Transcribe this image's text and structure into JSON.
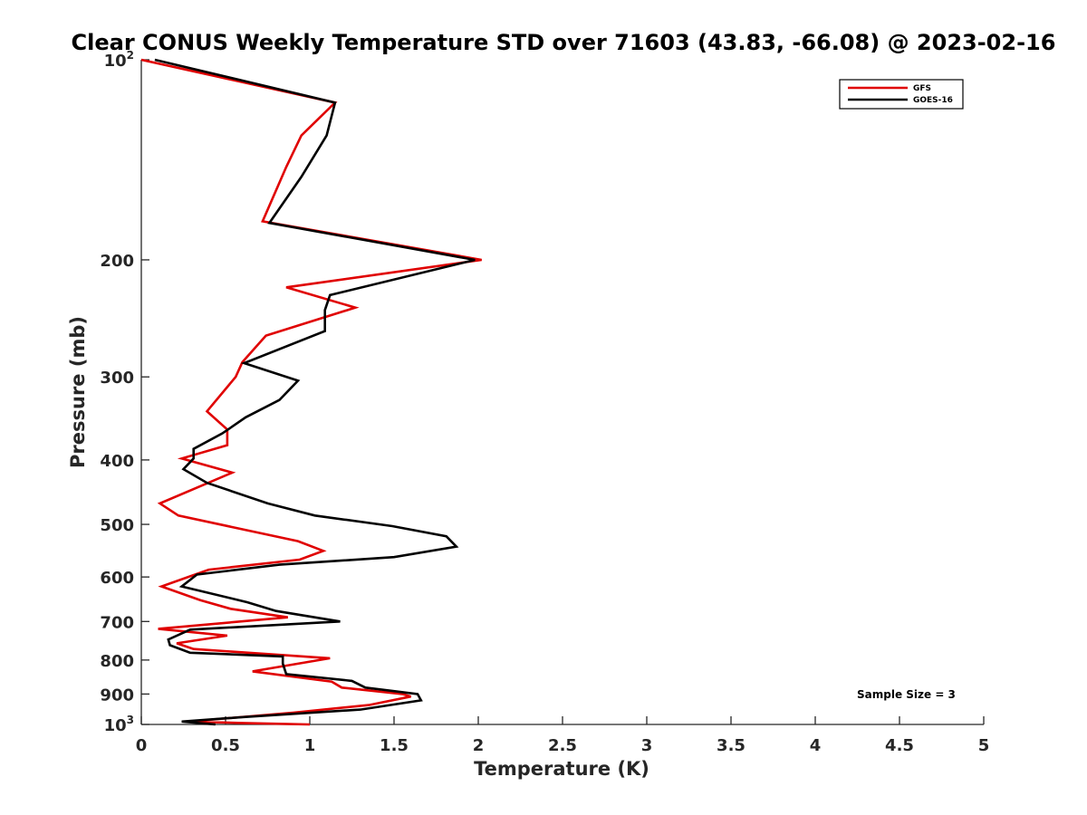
{
  "chart_data": {
    "type": "line",
    "title": "Clear CONUS Weekly Temperature STD over 71603 (43.83, -66.08) @ 2023-02-16",
    "xlabel": "Temperature (K)",
    "ylabel": "Pressure (mb)",
    "xlim": [
      0,
      5
    ],
    "ylim": [
      100,
      1000
    ],
    "y_scale": "log",
    "y_reversed": true,
    "grid": false,
    "legend_position": "top-right",
    "x_ticks": [
      "0",
      "0.5",
      "1",
      "1.5",
      "2",
      "2.5",
      "3",
      "3.5",
      "4",
      "4.5",
      "5"
    ],
    "y_ticks": [
      {
        "value": 100,
        "base": "10",
        "exp": "2"
      },
      {
        "value": 200,
        "label": "200"
      },
      {
        "value": 300,
        "label": "300"
      },
      {
        "value": 400,
        "label": "400"
      },
      {
        "value": 500,
        "label": "500"
      },
      {
        "value": 600,
        "label": "600"
      },
      {
        "value": 700,
        "label": "700"
      },
      {
        "value": 800,
        "label": "800"
      },
      {
        "value": 900,
        "label": "900"
      },
      {
        "value": 1000,
        "base": "10",
        "exp": "3"
      }
    ],
    "annotation": "Sample Size = 3",
    "series": [
      {
        "name": "GFS",
        "color": "#e00000",
        "points": [
          [
            0.0,
            100
          ],
          [
            1.15,
            116
          ],
          [
            0.95,
            130
          ],
          [
            0.86,
            145
          ],
          [
            0.72,
            175
          ],
          [
            2.02,
            200
          ],
          [
            0.86,
            220
          ],
          [
            1.27,
            236
          ],
          [
            0.74,
            260
          ],
          [
            0.6,
            285
          ],
          [
            0.56,
            300
          ],
          [
            0.39,
            338
          ],
          [
            0.51,
            360
          ],
          [
            0.51,
            380
          ],
          [
            0.24,
            398
          ],
          [
            0.54,
            418
          ],
          [
            0.11,
            465
          ],
          [
            0.22,
            485
          ],
          [
            0.93,
            530
          ],
          [
            1.08,
            548
          ],
          [
            0.94,
            565
          ],
          [
            0.4,
            585
          ],
          [
            0.12,
            620
          ],
          [
            0.35,
            650
          ],
          [
            0.53,
            670
          ],
          [
            0.87,
            690
          ],
          [
            0.1,
            718
          ],
          [
            0.51,
            735
          ],
          [
            0.21,
            755
          ],
          [
            0.31,
            770
          ],
          [
            1.12,
            795
          ],
          [
            0.66,
            832
          ],
          [
            1.13,
            862
          ],
          [
            1.19,
            880
          ],
          [
            1.55,
            900
          ],
          [
            1.6,
            908
          ],
          [
            1.35,
            935
          ],
          [
            0.9,
            960
          ],
          [
            0.28,
            990
          ],
          [
            0.6,
            995
          ],
          [
            1.0,
            1000
          ]
        ]
      },
      {
        "name": "GOES-16",
        "color": "#000000",
        "points": [
          [
            0.08,
            100
          ],
          [
            1.15,
            116
          ],
          [
            1.1,
            130
          ],
          [
            0.95,
            150
          ],
          [
            0.76,
            176
          ],
          [
            1.98,
            200
          ],
          [
            1.12,
            226
          ],
          [
            1.09,
            238
          ],
          [
            1.09,
            256
          ],
          [
            0.61,
            286
          ],
          [
            0.93,
            304
          ],
          [
            0.82,
            325
          ],
          [
            0.62,
            345
          ],
          [
            0.48,
            365
          ],
          [
            0.31,
            385
          ],
          [
            0.31,
            398
          ],
          [
            0.25,
            413
          ],
          [
            0.39,
            433
          ],
          [
            0.75,
            465
          ],
          [
            1.03,
            485
          ],
          [
            1.49,
            503
          ],
          [
            1.81,
            521
          ],
          [
            1.87,
            540
          ],
          [
            1.5,
            560
          ],
          [
            0.82,
            575
          ],
          [
            0.33,
            595
          ],
          [
            0.24,
            620
          ],
          [
            0.63,
            655
          ],
          [
            0.8,
            675
          ],
          [
            1.18,
            700
          ],
          [
            0.29,
            720
          ],
          [
            0.16,
            745
          ],
          [
            0.17,
            760
          ],
          [
            0.29,
            780
          ],
          [
            0.84,
            790
          ],
          [
            0.84,
            810
          ],
          [
            0.86,
            840
          ],
          [
            1.25,
            860
          ],
          [
            1.33,
            880
          ],
          [
            1.64,
            900
          ],
          [
            1.66,
            920
          ],
          [
            1.3,
            950
          ],
          [
            0.6,
            975
          ],
          [
            0.24,
            990
          ],
          [
            0.44,
            1000
          ]
        ]
      }
    ]
  }
}
